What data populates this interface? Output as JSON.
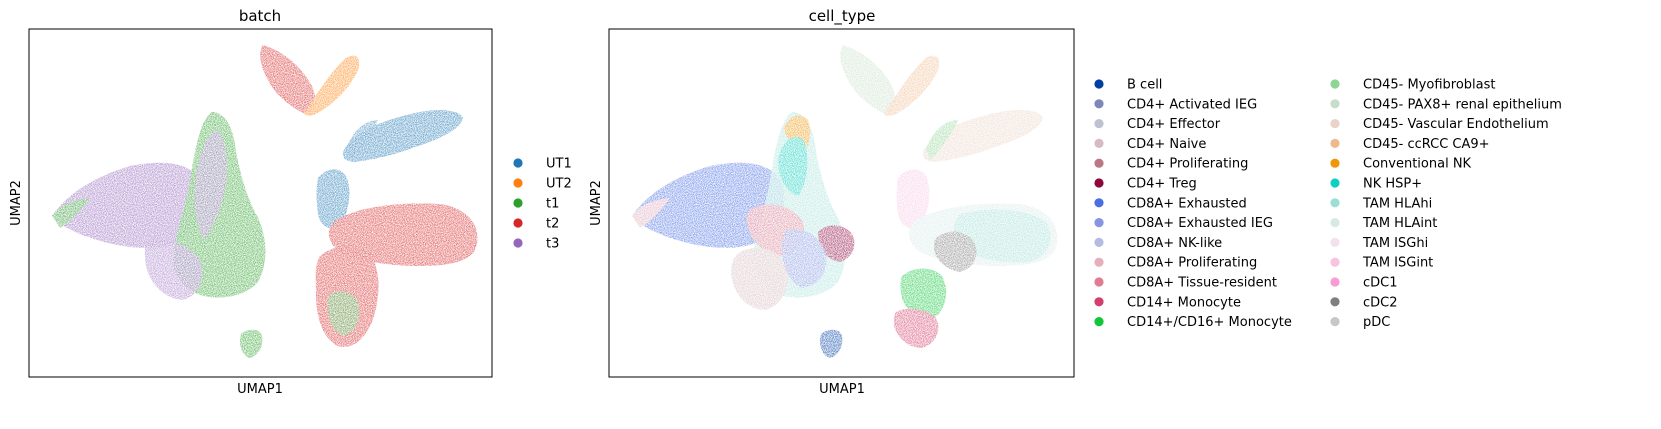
{
  "chart_data": [
    {
      "type": "scatter",
      "title": "batch",
      "xlabel": "UMAP1",
      "ylabel": "UMAP2",
      "grid": false,
      "ticks": false,
      "legend": {
        "placement": "right",
        "columns": 1,
        "entries": [
          {
            "label": "UT1",
            "color": "#1f77b4"
          },
          {
            "label": "UT2",
            "color": "#ff7f0e"
          },
          {
            "label": "t1",
            "color": "#2ca02c"
          },
          {
            "label": "t2",
            "color": "#d62728"
          },
          {
            "label": "t3",
            "color": "#9467bd"
          }
        ]
      },
      "point_colors": {
        "top_fan_left": "#d62728",
        "top_fan_right": "#ff7f0e",
        "upper_right_arc": "#1f77b4",
        "left_wing": "#9467bd",
        "left_wing_edge": "#2ca02c",
        "central": "#2ca02c",
        "central_mix": "#9467bd",
        "small_blue": "#1f77b4",
        "right_big": "#d62728",
        "right_lower": "#d62728",
        "right_lower_mix": "#2ca02c",
        "bottom_small": "#2ca02c"
      }
    },
    {
      "type": "scatter",
      "title": "cell_type",
      "xlabel": "UMAP1",
      "ylabel": "UMAP2",
      "grid": false,
      "ticks": false,
      "legend": {
        "placement": "right",
        "columns": 2,
        "entries": [
          {
            "label": "B cell",
            "color": "#023fa5"
          },
          {
            "label": "CD4+ Activated IEG",
            "color": "#7d87b9"
          },
          {
            "label": "CD4+ Effector",
            "color": "#bec1d4"
          },
          {
            "label": "CD4+ Naive",
            "color": "#d6bcc0"
          },
          {
            "label": "CD4+ Proliferating",
            "color": "#bb7784"
          },
          {
            "label": "CD4+ Treg",
            "color": "#8e063b"
          },
          {
            "label": "CD8A+ Exhausted",
            "color": "#4a6fe3"
          },
          {
            "label": "CD8A+ Exhausted IEG",
            "color": "#8595e1"
          },
          {
            "label": "CD8A+ NK-like",
            "color": "#b5bbe3"
          },
          {
            "label": "CD8A+ Proliferating",
            "color": "#e6afb9"
          },
          {
            "label": "CD8A+ Tissue-resident",
            "color": "#e07b91"
          },
          {
            "label": "CD14+ Monocyte",
            "color": "#d33f6a"
          },
          {
            "label": "CD14+/CD16+ Monocyte",
            "color": "#11c638"
          },
          {
            "label": "CD45- Myofibroblast",
            "color": "#8dd593"
          },
          {
            "label": "CD45- PAX8+ renal epithelium",
            "color": "#c6dec7"
          },
          {
            "label": "CD45- Vascular Endothelium",
            "color": "#ead3c6"
          },
          {
            "label": "CD45- ccRCC CA9+",
            "color": "#f0b98d"
          },
          {
            "label": "Conventional NK",
            "color": "#ef9708"
          },
          {
            "label": "NK HSP+",
            "color": "#0fcfc0"
          },
          {
            "label": "TAM HLAhi",
            "color": "#9cded6"
          },
          {
            "label": "TAM HLAint",
            "color": "#d5eae7"
          },
          {
            "label": "TAM ISGhi",
            "color": "#f3e1eb"
          },
          {
            "label": "TAM ISGint",
            "color": "#f6c4e1"
          },
          {
            "label": "cDC1",
            "color": "#f79cd4"
          },
          {
            "label": "cDC2",
            "color": "#7f7f7f"
          },
          {
            "label": "pDC",
            "color": "#c7c7c7"
          }
        ]
      },
      "point_colors": {
        "top_fan_left": "#c6dec7",
        "top_fan_right": "#f0b98d",
        "upper_right_arc": "#ead3c6",
        "upper_right_arc_left": "#8dd593",
        "left_wing": "#4a6fe3",
        "left_wing_edge": "#e6afb9",
        "central": "#9cded6",
        "central_top": "#ef9708",
        "central_mid": "#0fcfc0",
        "central_low": "#e07b91",
        "treg": "#8e063b",
        "lower_center": "#d6bcc0",
        "lower_center_mix": "#8595e1",
        "small_pink": "#f6c4e1",
        "right_big": "#9cded6",
        "right_big_light": "#d5eae7",
        "right_gray": "#7f7f7f",
        "right_lower": "#11c638",
        "right_bottom": "#d33f6a",
        "bottom_small": "#023fa5"
      }
    }
  ]
}
